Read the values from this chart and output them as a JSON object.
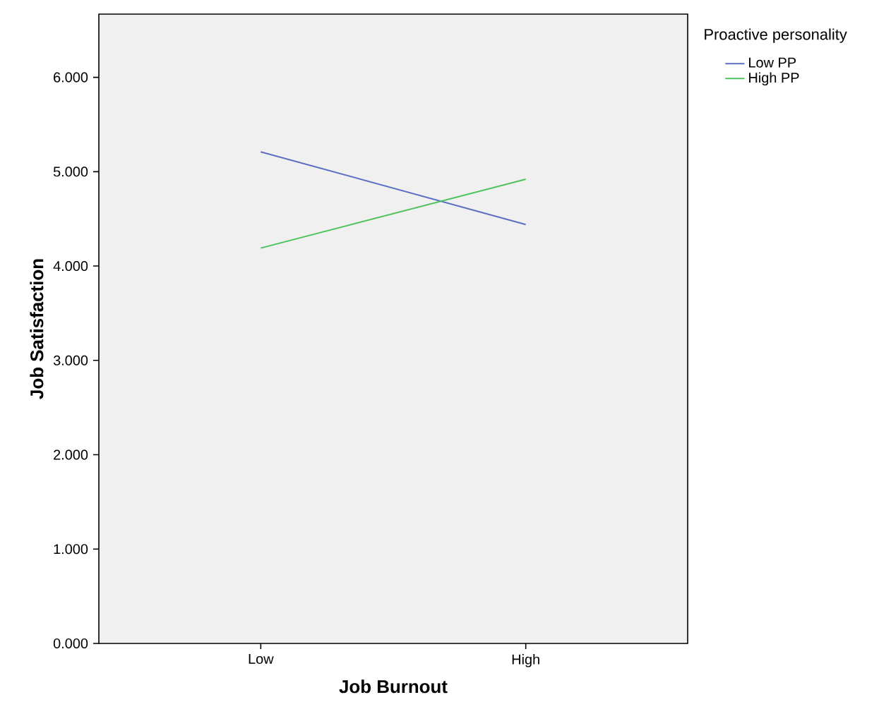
{
  "chart_data": {
    "type": "line",
    "xlabel": "Job Burnout",
    "ylabel": "Job Satisfaction",
    "legend_title": "Proactive personality",
    "categories": [
      "Low",
      "High"
    ],
    "series": [
      {
        "name": "Low PP",
        "color": "#5b6ec2",
        "values": [
          5.21,
          4.44
        ]
      },
      {
        "name": "High PP",
        "color": "#4cc35a",
        "values": [
          4.19,
          4.92
        ]
      }
    ],
    "ylim": [
      0,
      6.67
    ],
    "yticks": [
      {
        "value": 0,
        "label": "0.000"
      },
      {
        "value": 1,
        "label": "1.000"
      },
      {
        "value": 2,
        "label": "2.000"
      },
      {
        "value": 3,
        "label": "3.000"
      },
      {
        "value": 4,
        "label": "4.000"
      },
      {
        "value": 5,
        "label": "5.000"
      },
      {
        "value": 6,
        "label": "6.000"
      }
    ],
    "legend": "top right",
    "marker": "none",
    "line_style": "solid"
  }
}
